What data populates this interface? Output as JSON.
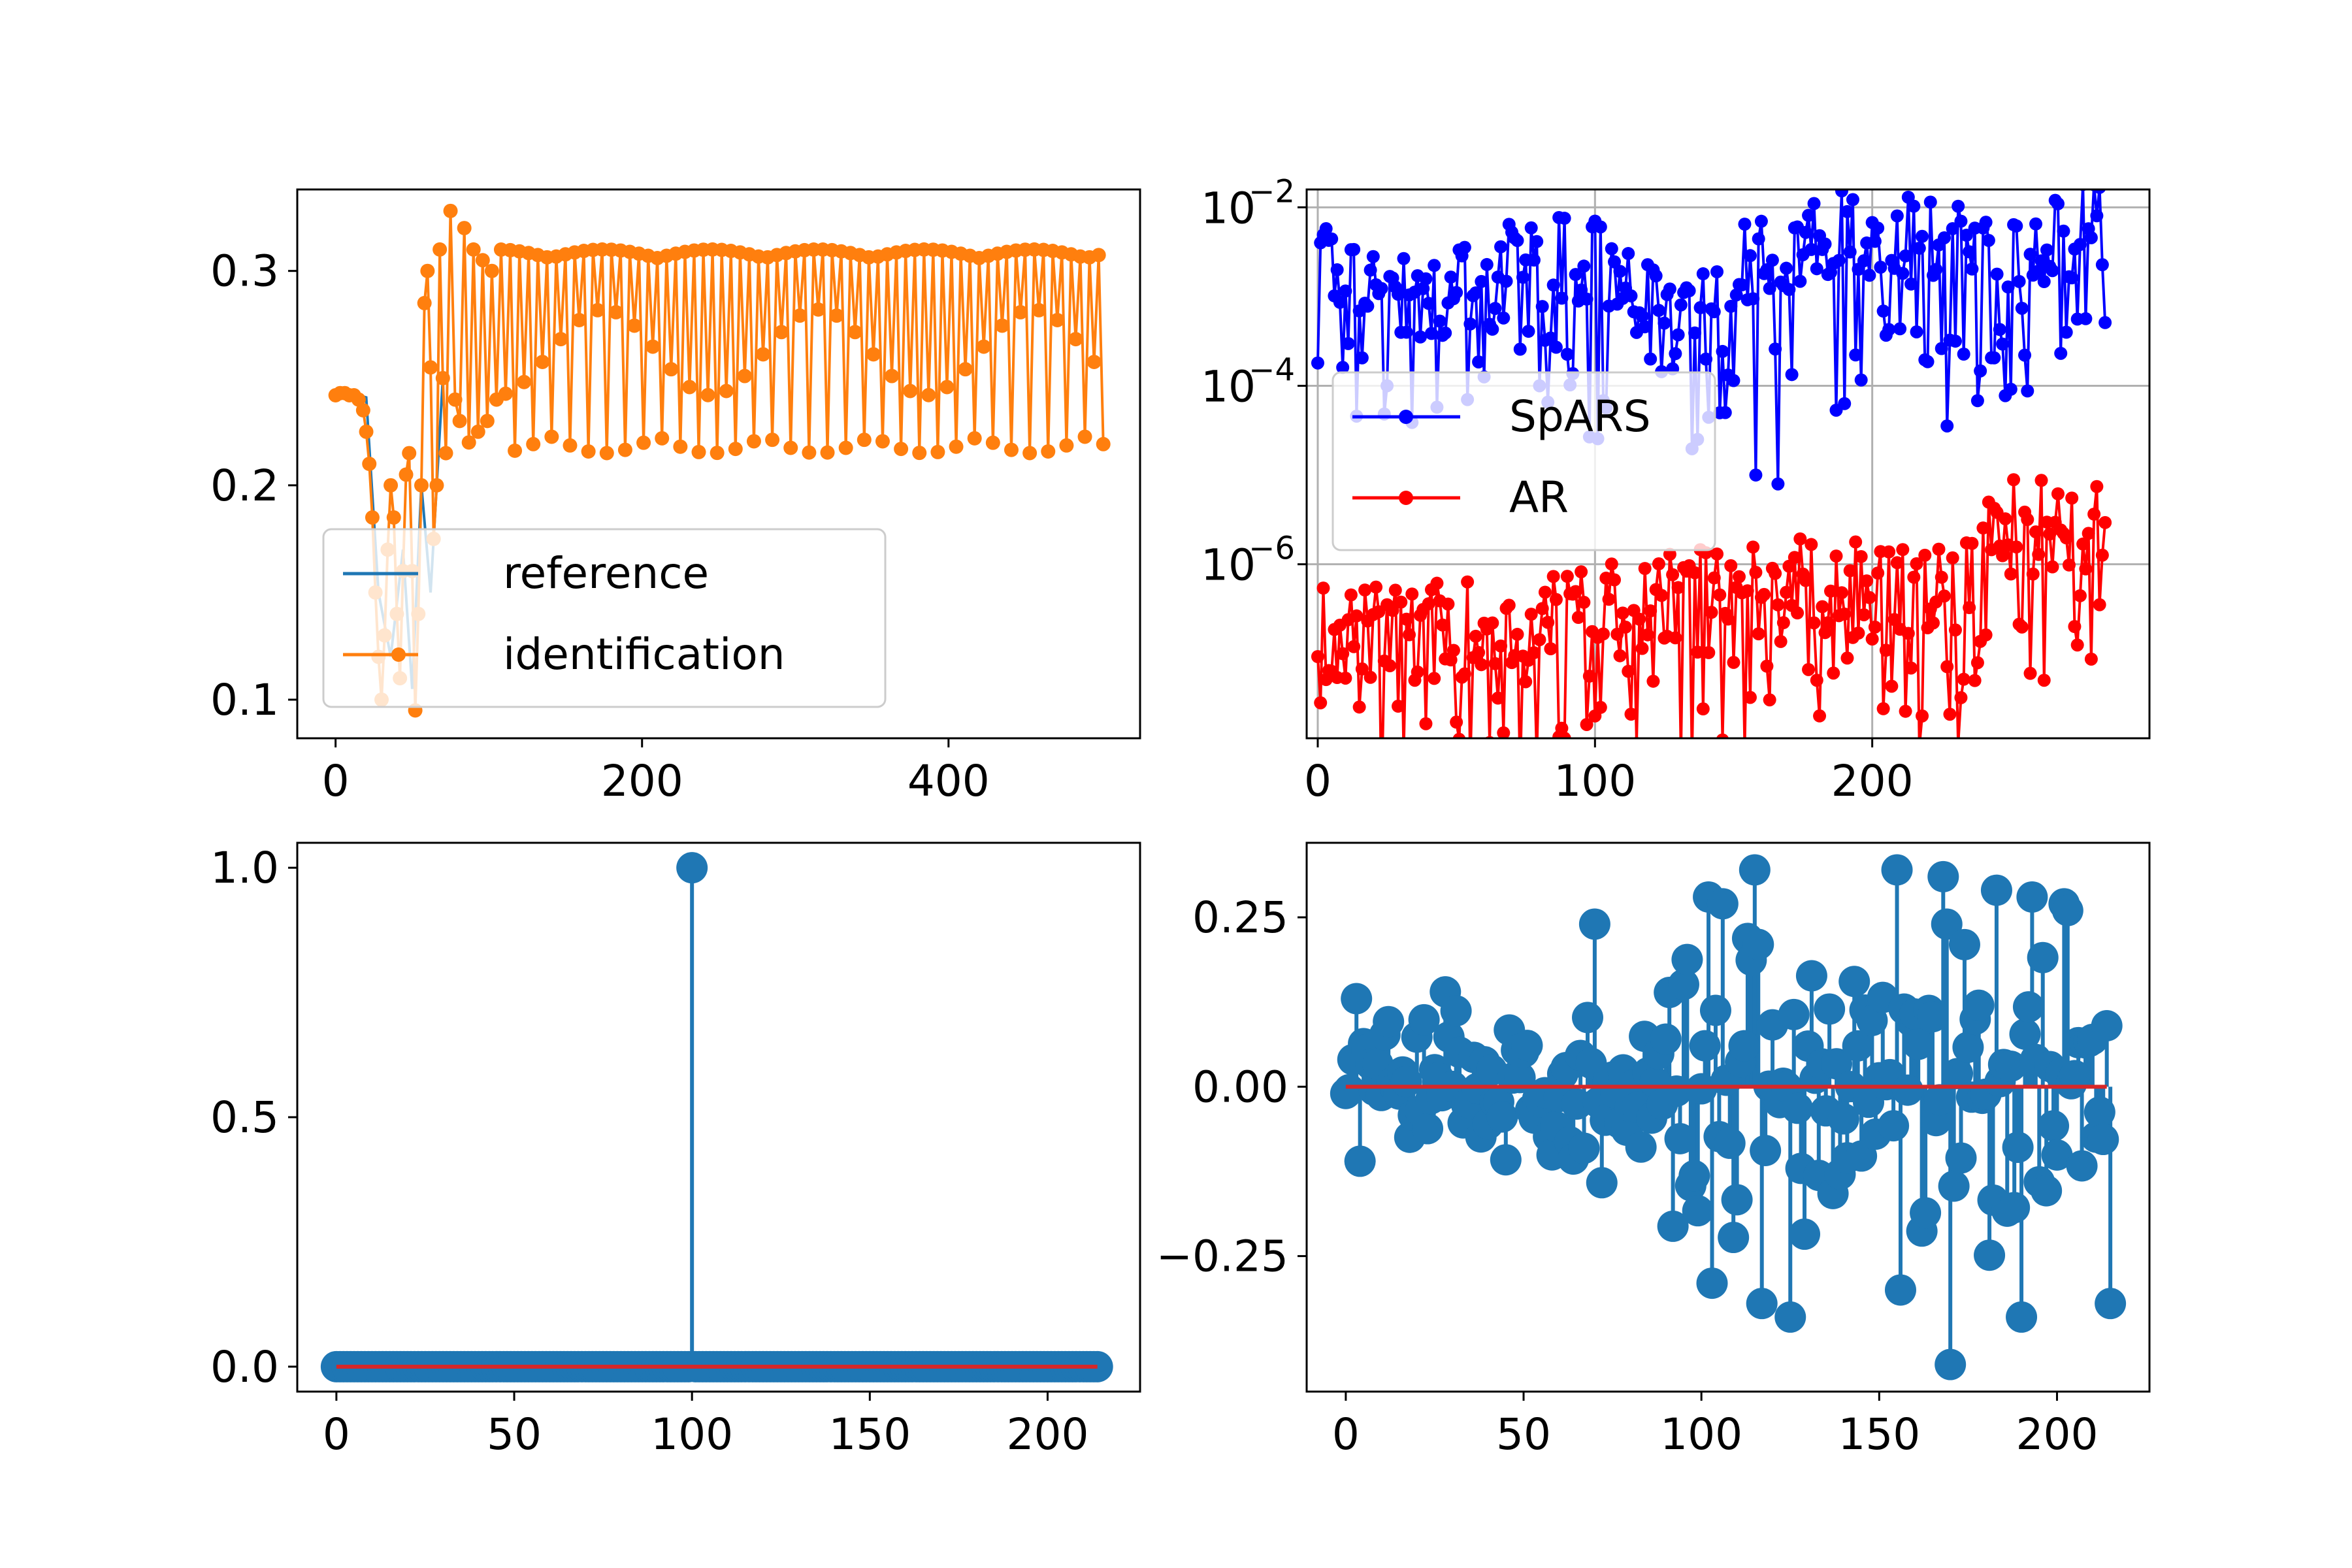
{
  "colors": {
    "tab_blue": "#1f77b4",
    "tab_orange": "#ff7f0e",
    "stem_baseline_red": "#d62728",
    "spars_blue": "#0000ff",
    "ar_red": "#ff0000",
    "grid_gray": "#b0b0b0"
  },
  "chart_data": [
    {
      "id": "top-left",
      "type": "line",
      "xlim": [
        -25,
        525
      ],
      "ylim": [
        0.082,
        0.338
      ],
      "xticks": [
        0,
        200,
        400
      ],
      "xtick_labels": [
        "0",
        "200",
        "400"
      ],
      "yticks": [
        0.1,
        0.2,
        0.3
      ],
      "ytick_labels": [
        "0.1",
        "0.2",
        "0.3"
      ],
      "grid": false,
      "legend": {
        "placement": "lower-left",
        "entries": [
          "reference",
          "identification"
        ]
      },
      "series": [
        {
          "name": "reference",
          "color": "#1f77b4",
          "marker": "none",
          "note_hidden": true,
          "segments": [
            {
              "x": [
                0,
                10,
                20,
                28,
                36,
                44,
                50,
                56,
                62,
                70
              ],
              "y": [
                0.242,
                0.243,
                0.241,
                0.15,
                0.12,
                0.17,
                0.105,
                0.2,
                0.15,
                0.25
              ]
            }
          ]
        },
        {
          "name": "identification",
          "color": "#ff7f0e",
          "marker": "circle",
          "head": {
            "x": [
              0,
              3,
              6,
              9,
              12,
              15,
              18,
              20,
              22,
              24,
              26,
              28,
              30,
              32,
              34,
              36,
              38,
              40,
              42,
              44,
              46,
              48,
              50,
              52,
              54,
              56,
              58,
              60,
              62,
              64,
              66,
              68,
              70,
              72,
              75,
              78,
              81,
              84,
              87,
              90,
              93,
              96,
              99,
              102,
              105
            ],
            "y": [
              0.242,
              0.243,
              0.243,
              0.242,
              0.242,
              0.24,
              0.235,
              0.225,
              0.21,
              0.185,
              0.15,
              0.12,
              0.1,
              0.13,
              0.17,
              0.2,
              0.185,
              0.14,
              0.11,
              0.16,
              0.205,
              0.215,
              0.16,
              0.095,
              0.14,
              0.2,
              0.285,
              0.3,
              0.255,
              0.175,
              0.2,
              0.31,
              0.25,
              0.215,
              0.328,
              0.24,
              0.23,
              0.32,
              0.22,
              0.31,
              0.225,
              0.305,
              0.23,
              0.3,
              0.24
            ]
          },
          "oscillation": {
            "x_start": 108,
            "x_end": 501,
            "step": 3,
            "peak_amp": 0.31,
            "trough_amp": 0.215,
            "mid": 0.262,
            "beat_period": 140
          }
        }
      ]
    },
    {
      "id": "top-right",
      "type": "line",
      "yscale": "log",
      "xlim": [
        -4,
        300
      ],
      "ylog_lim": [
        -7.95,
        -1.8
      ],
      "xticks": [
        0,
        100,
        200
      ],
      "xtick_labels": [
        "0",
        "100",
        "200"
      ],
      "yticks_log": [
        -6,
        -4,
        -2
      ],
      "ytick_base": "10",
      "ytick_exponents": [
        "−6",
        "−4",
        "−2"
      ],
      "grid": true,
      "legend": {
        "placement": "center-left",
        "entries": [
          "SpARS",
          "AR"
        ]
      },
      "series": [
        {
          "name": "SpARS",
          "color": "#0000ff",
          "marker": "circle",
          "n": 285,
          "log_mean": [
            [
              0,
              -2.6
            ],
            [
              40,
              -3.0
            ],
            [
              90,
              -2.5
            ],
            [
              130,
              -3.3
            ],
            [
              160,
              -2.4
            ],
            [
              200,
              -2.3
            ],
            [
              240,
              -2.5
            ],
            [
              285,
              -2.15
            ]
          ],
          "dips": [
            [
              25,
              -4.0
            ],
            [
              60,
              -3.9
            ],
            [
              80,
              -4.0
            ],
            [
              120,
              -3.7
            ],
            [
              147,
              -4.3
            ],
            [
              158,
              -5.0
            ],
            [
              166,
              -5.1
            ],
            [
              190,
              -4.2
            ],
            [
              230,
              -3.5
            ],
            [
              270,
              -3.4
            ]
          ]
        },
        {
          "name": "AR",
          "color": "#ff0000",
          "marker": "circle",
          "n": 285,
          "log_mean": [
            [
              0,
              -6.8
            ],
            [
              70,
              -6.7
            ],
            [
              130,
              -6.4
            ],
            [
              170,
              -6.2
            ],
            [
              230,
              -6.4
            ],
            [
              240,
              -5.6
            ],
            [
              285,
              -5.5
            ]
          ],
          "dips": [
            [
              5,
              -7.2
            ],
            [
              15,
              -7.6
            ],
            [
              35,
              -7.3
            ],
            [
              65,
              -7.5
            ],
            [
              100,
              -7.7
            ],
            [
              112,
              -7.2
            ],
            [
              150,
              -7.1
            ],
            [
              180,
              -7.3
            ],
            [
              218,
              -7.7
            ],
            [
              262,
              -7.3
            ]
          ]
        }
      ]
    },
    {
      "id": "bottom-left",
      "type": "stem",
      "xlim": [
        -11,
        226
      ],
      "ylim": [
        -0.05,
        1.05
      ],
      "xticks": [
        0,
        50,
        100,
        150,
        200
      ],
      "xtick_labels": [
        "0",
        "50",
        "100",
        "150",
        "200"
      ],
      "yticks": [
        0.0,
        0.5,
        1.0
      ],
      "ytick_labels": [
        "0.0",
        "0.5",
        "1.0"
      ],
      "grid": false,
      "n": 215,
      "impulse_index": 100,
      "impulse_value": 1.0,
      "baseline": 0.0
    },
    {
      "id": "bottom-right",
      "type": "stem",
      "xlim": [
        -11,
        226
      ],
      "ylim": [
        -0.45,
        0.36
      ],
      "xticks": [
        0,
        50,
        100,
        150,
        200
      ],
      "xtick_labels": [
        "0",
        "50",
        "100",
        "150",
        "200"
      ],
      "yticks": [
        -0.25,
        0.0,
        0.25
      ],
      "ytick_labels": [
        "−0.25",
        "0.00",
        "0.25"
      ],
      "grid": false,
      "n": 215,
      "baseline": 0.0,
      "notable_points": [
        [
          0,
          -0.01
        ],
        [
          2,
          0.04
        ],
        [
          3,
          0.13
        ],
        [
          4,
          -0.11
        ],
        [
          28,
          0.14
        ],
        [
          70,
          0.24
        ],
        [
          102,
          0.28
        ],
        [
          103,
          -0.29
        ],
        [
          106,
          0.27
        ],
        [
          115,
          0.32
        ],
        [
          116,
          0.21
        ],
        [
          117,
          -0.32
        ],
        [
          125,
          -0.34
        ],
        [
          155,
          0.32
        ],
        [
          156,
          -0.3
        ],
        [
          168,
          0.31
        ],
        [
          169,
          0.24
        ],
        [
          170,
          -0.41
        ],
        [
          183,
          0.29
        ],
        [
          190,
          -0.34
        ],
        [
          193,
          0.28
        ],
        [
          202,
          0.27
        ],
        [
          203,
          0.26
        ],
        [
          214,
          0.09
        ],
        [
          215,
          -0.32
        ]
      ]
    }
  ]
}
